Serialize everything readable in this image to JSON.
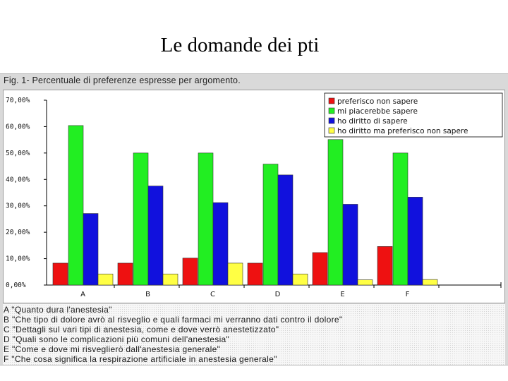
{
  "slide": {
    "title": "Le domande dei pti"
  },
  "figure": {
    "caption": "Fig. 1- Percentuale di preferenze espresse per argomento.",
    "notes": [
      "A \"Quanto dura l'anestesia\"",
      "B \"Che tipo di dolore avrò al risveglio e quali farmaci mi verranno dati contro il dolore\"",
      "C \"Dettagli sul vari tipi di anestesia, come e dove verrò anestetizzato\"",
      "D \"Quali sono le complicazioni più comuni dell'anestesia\"",
      "E \"Come e dove mi risveglierò dall'anestesia generale\"",
      "F \"Che cosa significa la respirazione artificiale in anestesia generale\""
    ]
  },
  "chart_data": {
    "type": "bar",
    "categories": [
      "A",
      "B",
      "C",
      "D",
      "E",
      "F"
    ],
    "y_tick_labels": [
      "0,00%",
      "10,00%",
      "20,00%",
      "30,00%",
      "40,00%",
      "50,00%",
      "60,00%",
      "70,00%"
    ],
    "ylim": [
      0,
      70
    ],
    "grid": false,
    "legend_position": "top-right",
    "series": [
      {
        "name": "preferisco non sapere",
        "color": "#ee1111",
        "values": [
          8.3,
          8.3,
          10.2,
          8.3,
          12.3,
          14.6
        ]
      },
      {
        "name": "mi piacerebbe sapere",
        "color": "#22ee22",
        "values": [
          60.4,
          50.0,
          50.0,
          45.8,
          55.1,
          50.0
        ]
      },
      {
        "name": "ho diritto di sapere",
        "color": "#1111dd",
        "values": [
          27.1,
          37.5,
          31.2,
          41.7,
          30.6,
          33.3
        ]
      },
      {
        "name": "ho diritto ma preferisco non sapere",
        "color": "#ffff44",
        "values": [
          4.2,
          4.2,
          8.3,
          4.2,
          2.0,
          2.1
        ]
      }
    ]
  }
}
